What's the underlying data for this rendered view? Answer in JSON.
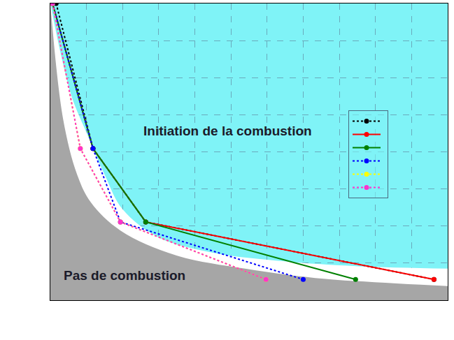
{
  "chart_data": {
    "type": "line",
    "xlim": [
      0,
      11
    ],
    "ylim": [
      0,
      8
    ],
    "xticks": [
      0,
      1,
      2,
      3,
      4,
      5,
      6,
      7,
      8,
      9,
      10,
      11
    ],
    "yticks": [
      0,
      1,
      2,
      3,
      4,
      5,
      6,
      7,
      8
    ],
    "grid": true,
    "tick_labels": false,
    "legend": "right",
    "regions": [
      {
        "color": "#ffffff",
        "x": [
          0,
          0.3,
          0.6,
          1.0,
          1.5,
          2.0,
          3.0,
          4.5,
          6,
          8,
          11
        ],
        "y": [
          8.0,
          6.59,
          5.46,
          4.52,
          3.39,
          2.45,
          1.69,
          1.28,
          1.09,
          0.94,
          0.85
        ]
      },
      {
        "color": "#a6a6a6",
        "x": [
          0,
          0.35,
          0.74,
          1.12,
          1.94,
          3.45,
          5.39,
          7.33,
          11
        ],
        "y": [
          8.0,
          4.9,
          3.39,
          2.64,
          1.88,
          1.22,
          0.85,
          0.6,
          0.38
        ]
      }
    ],
    "series": [
      {
        "color": "#000000",
        "line_style": "dash",
        "marker": "circle",
        "x": [
          0.16,
          1.18,
          2.64,
          10.62
        ],
        "values": [
          8.0,
          4.09,
          2.11,
          0.56
        ]
      },
      {
        "color": "#ff0000",
        "line_style": "solid",
        "marker": "circle",
        "x": [
          0.06,
          1.18,
          2.64,
          10.62
        ],
        "values": [
          8.0,
          4.09,
          2.11,
          0.56
        ]
      },
      {
        "color": "#008000",
        "line_style": "solid",
        "marker": "circle",
        "x": [
          0.06,
          1.18,
          2.64,
          8.45
        ],
        "values": [
          8.0,
          4.09,
          2.11,
          0.56
        ]
      },
      {
        "color": "#0000ff",
        "line_style": "dash",
        "marker": "circle",
        "x": [
          0.06,
          1.18,
          1.94,
          7.0
        ],
        "values": [
          8.0,
          4.09,
          2.11,
          0.56
        ]
      },
      {
        "color": "#ffff00",
        "line_style": "dash",
        "marker": "circle",
        "x": [
          0.06,
          0.83,
          1.94,
          5.97
        ],
        "values": [
          8.0,
          4.09,
          2.11,
          0.56
        ]
      },
      {
        "color": "#ff33cc",
        "line_style": "dash",
        "marker": "circle",
        "x": [
          0.06,
          0.83,
          1.94,
          5.97
        ],
        "values": [
          8.0,
          4.09,
          2.11,
          0.56
        ]
      }
    ],
    "annotations": [
      {
        "text": "Initiation de la combustion",
        "x": 4.9,
        "y": 4.56
      },
      {
        "text": "Pas de combustion",
        "x": 2.05,
        "y": 0.66
      }
    ]
  }
}
